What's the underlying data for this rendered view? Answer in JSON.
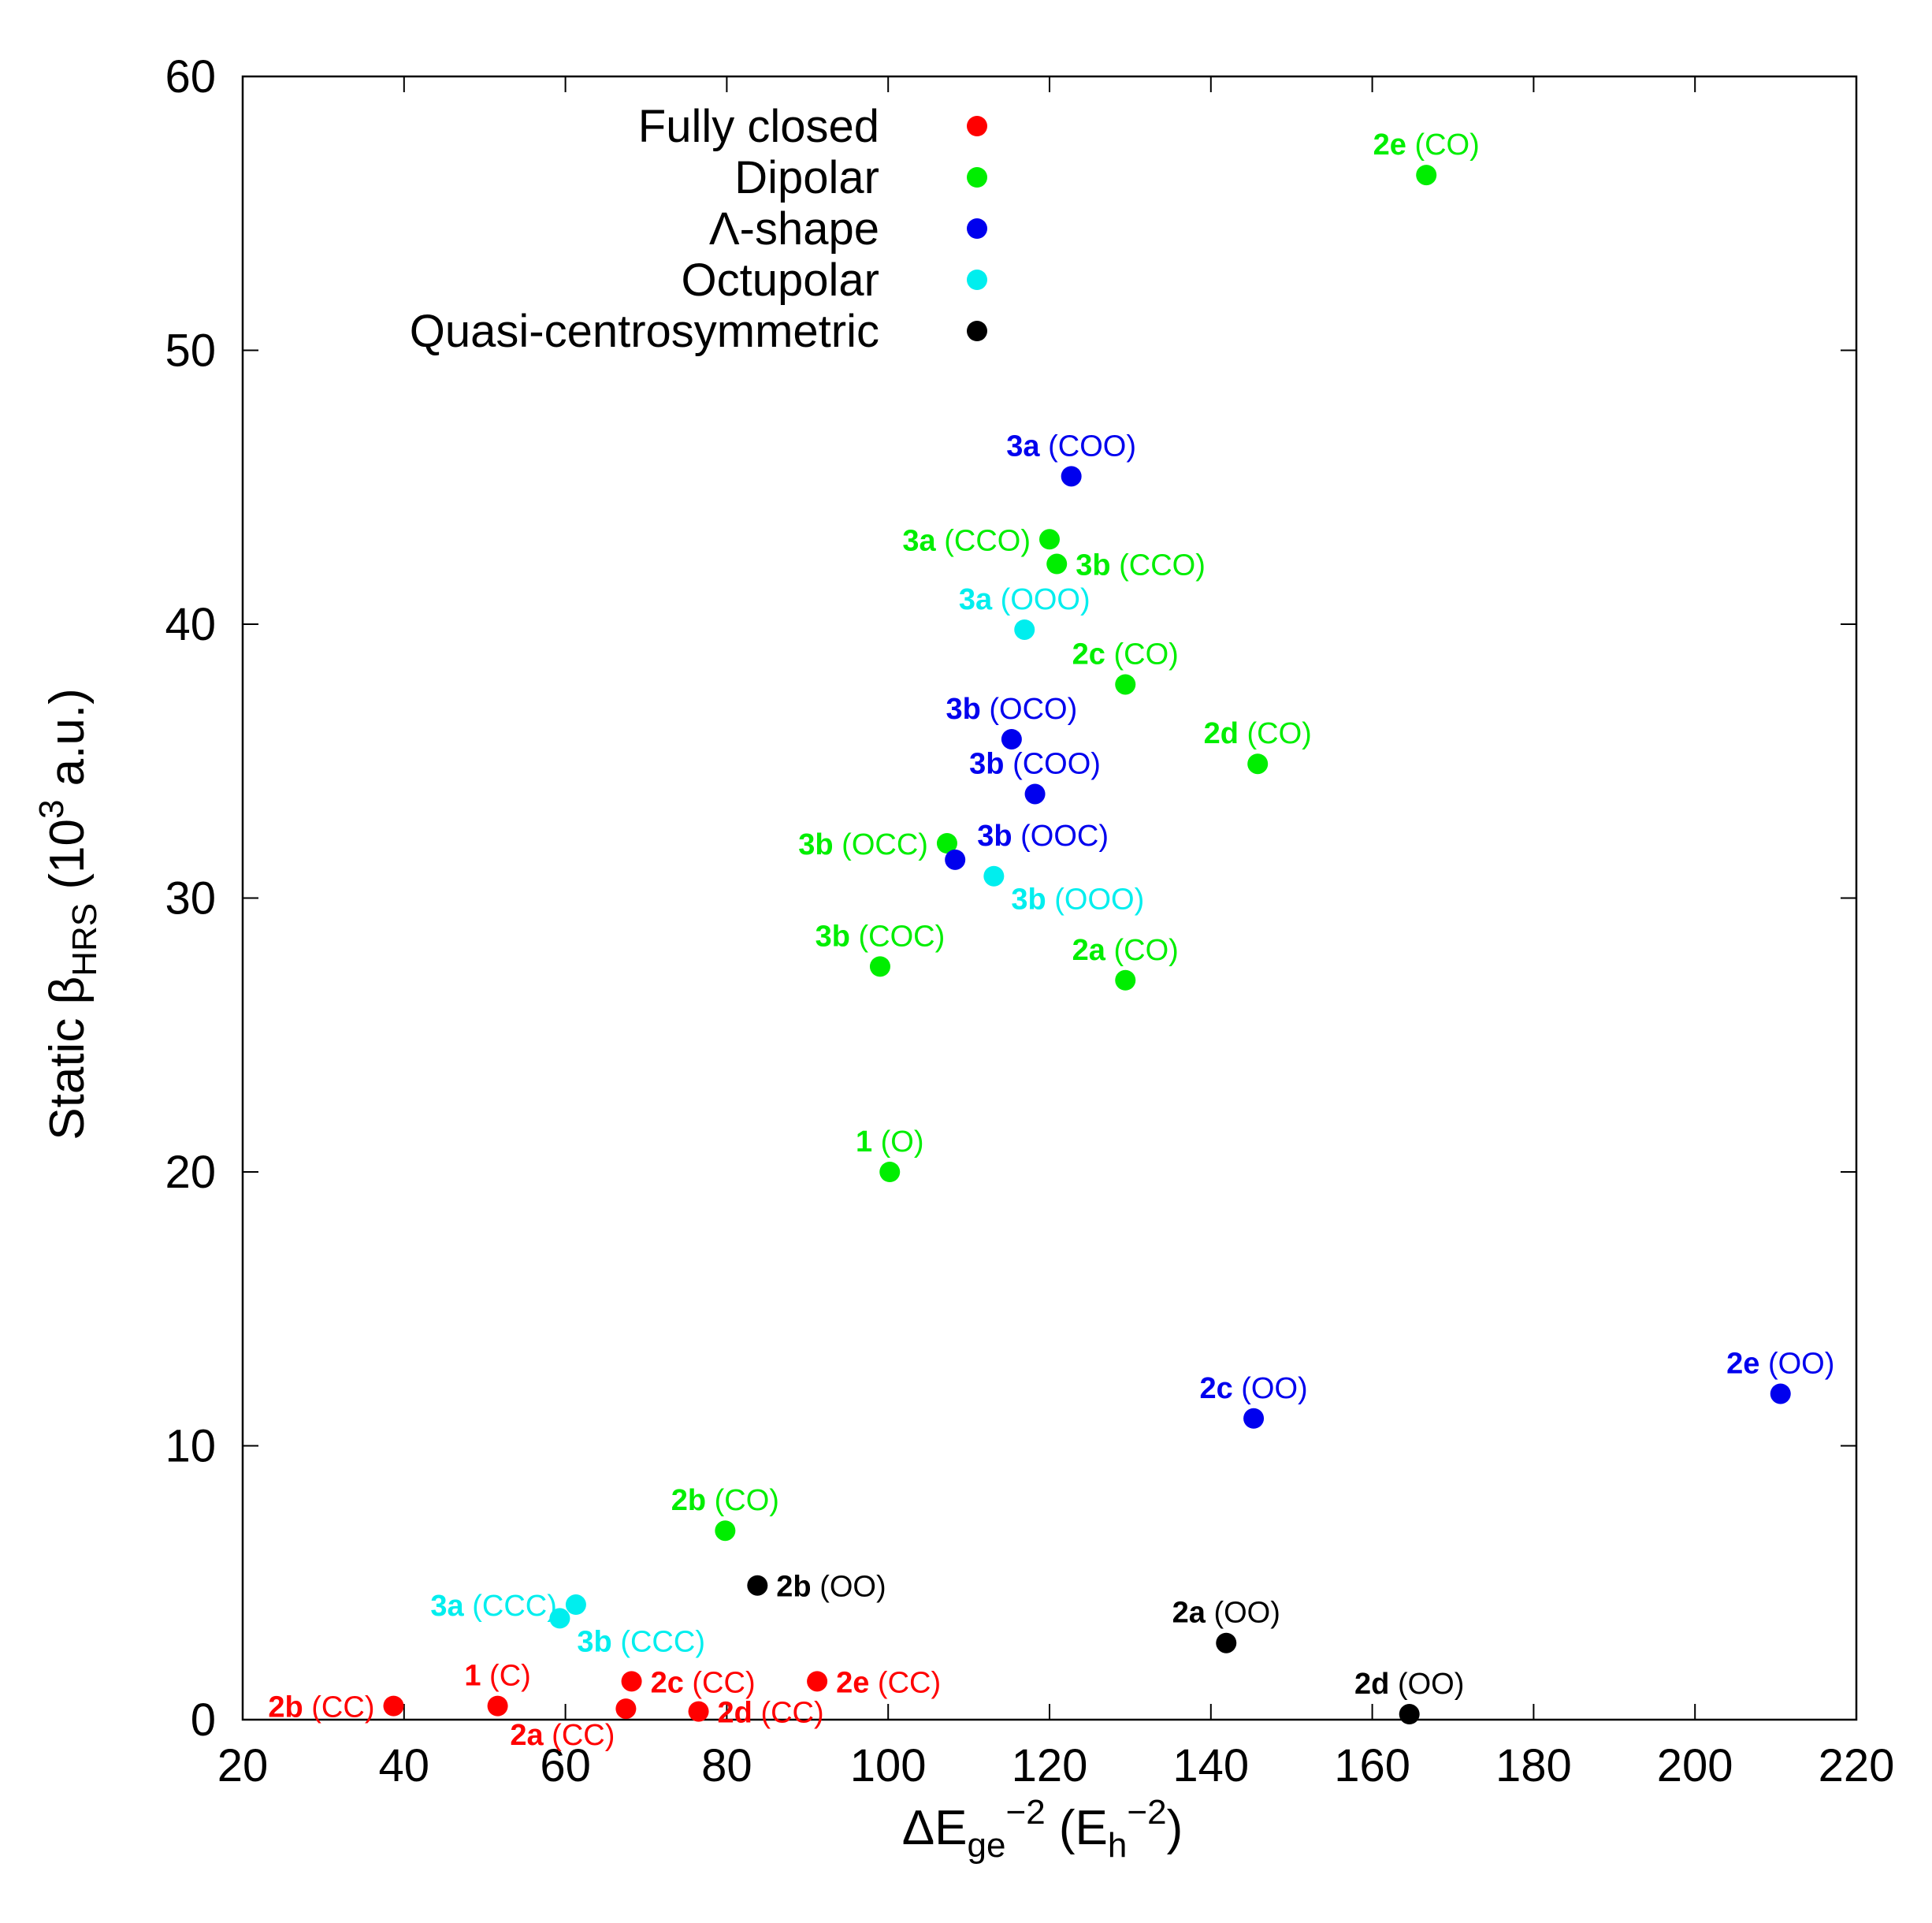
{
  "chart_data": {
    "type": "scatter",
    "xlabel": {
      "base": "ΔE",
      "sub": "ge",
      "sup": "−2",
      "unit_open": " (E",
      "unit_sub": "h",
      "unit_sup": "−2",
      "unit_close": ")"
    },
    "ylabel": {
      "base": "Static β",
      "sub": "HRS",
      "unit_open": " (10",
      "unit_sup": "3",
      "unit_close": " a.u.)"
    },
    "xlim": [
      20,
      220
    ],
    "ylim": [
      0,
      60
    ],
    "xticks": [
      20,
      40,
      60,
      80,
      100,
      120,
      140,
      160,
      180,
      200,
      220
    ],
    "yticks": [
      0,
      10,
      20,
      30,
      40,
      50,
      60
    ],
    "legend_position": "top-left",
    "series": [
      {
        "name": "Fully closed",
        "color": "#ff0000",
        "points": [
          {
            "x": 38.7,
            "y": 0.5,
            "bold": "2b",
            "rest": " (CC)",
            "anchor": "end",
            "pos": "left"
          },
          {
            "x": 51.6,
            "y": 0.5,
            "bold": "1",
            "rest": " (C)",
            "anchor": "middle",
            "pos": "above"
          },
          {
            "x": 67.5,
            "y": 0.4,
            "bold": "2a",
            "rest": " (CC)",
            "anchor": "end",
            "pos": "below-left"
          },
          {
            "x": 68.2,
            "y": 1.4,
            "bold": "2c",
            "rest": " (CC)",
            "anchor": "start",
            "pos": "right"
          },
          {
            "x": 76.5,
            "y": 0.3,
            "bold": "2d",
            "rest": " (CC)",
            "anchor": "start",
            "pos": "right"
          },
          {
            "x": 91.2,
            "y": 1.4,
            "bold": "2e",
            "rest": " (CC)",
            "anchor": "start",
            "pos": "right"
          }
        ]
      },
      {
        "name": "Dipolar",
        "color": "#00ee00",
        "points": [
          {
            "x": 166.7,
            "y": 56.4,
            "bold": "2e",
            "rest": " (CO)",
            "anchor": "middle",
            "pos": "above"
          },
          {
            "x": 120.0,
            "y": 43.1,
            "bold": "3a",
            "rest": " (CCO)",
            "anchor": "end",
            "pos": "left"
          },
          {
            "x": 120.9,
            "y": 42.2,
            "bold": "3b",
            "rest": " (CCO)",
            "anchor": "start",
            "pos": "right"
          },
          {
            "x": 129.4,
            "y": 37.8,
            "bold": "2c",
            "rest": " (CO)",
            "anchor": "middle",
            "pos": "above"
          },
          {
            "x": 145.8,
            "y": 34.9,
            "bold": "2d",
            "rest": " (CO)",
            "anchor": "middle",
            "pos": "above"
          },
          {
            "x": 107.3,
            "y": 32.0,
            "bold": "3b",
            "rest": " (OCC)",
            "anchor": "end",
            "pos": "left"
          },
          {
            "x": 99.0,
            "y": 27.5,
            "bold": "3b",
            "rest": " (COC)",
            "anchor": "middle",
            "pos": "above"
          },
          {
            "x": 129.4,
            "y": 27.0,
            "bold": "2a",
            "rest": " (CO)",
            "anchor": "middle",
            "pos": "above"
          },
          {
            "x": 100.2,
            "y": 20.0,
            "bold": "1",
            "rest": " (O)",
            "anchor": "middle",
            "pos": "above"
          },
          {
            "x": 79.8,
            "y": 6.9,
            "bold": "2b",
            "rest": " (CO)",
            "anchor": "middle",
            "pos": "above"
          }
        ]
      },
      {
        "name": "Λ-shape",
        "color": "#0000ee",
        "points": [
          {
            "x": 122.7,
            "y": 45.4,
            "bold": "3a",
            "rest": " (COO)",
            "anchor": "middle",
            "pos": "above"
          },
          {
            "x": 115.3,
            "y": 35.8,
            "bold": "3b",
            "rest": " (OCO)",
            "anchor": "middle",
            "pos": "above"
          },
          {
            "x": 118.2,
            "y": 33.8,
            "bold": "3b",
            "rest": " (COO)",
            "anchor": "middle",
            "pos": "above"
          },
          {
            "x": 108.3,
            "y": 31.4,
            "bold": "3b",
            "rest": " (OOC)",
            "anchor": "start",
            "pos": "above-right"
          },
          {
            "x": 145.3,
            "y": 11.0,
            "bold": "2c",
            "rest": " (OO)",
            "anchor": "middle",
            "pos": "above"
          },
          {
            "x": 210.6,
            "y": 11.9,
            "bold": "2e",
            "rest": " (OO)",
            "anchor": "middle",
            "pos": "above"
          }
        ]
      },
      {
        "name": "Octupolar",
        "color": "#00eeee",
        "points": [
          {
            "x": 116.9,
            "y": 39.8,
            "bold": "3a",
            "rest": " (OOO)",
            "anchor": "middle",
            "pos": "above"
          },
          {
            "x": 113.1,
            "y": 30.8,
            "bold": "3b",
            "rest": " (OOO)",
            "anchor": "start",
            "pos": "below-right"
          },
          {
            "x": 61.3,
            "y": 4.2,
            "bold": "3a",
            "rest": " (CCC)",
            "anchor": "end",
            "pos": "left"
          },
          {
            "x": 59.3,
            "y": 3.7,
            "bold": "3b",
            "rest": " (CCC)",
            "anchor": "start",
            "pos": "below-right"
          }
        ]
      },
      {
        "name": "Quasi-centrosymmetric",
        "color": "#000000",
        "points": [
          {
            "x": 83.8,
            "y": 4.9,
            "bold": "2b",
            "rest": " (OO)",
            "anchor": "start",
            "pos": "right"
          },
          {
            "x": 141.9,
            "y": 2.8,
            "bold": "2a",
            "rest": " (OO)",
            "anchor": "middle",
            "pos": "above"
          },
          {
            "x": 164.6,
            "y": 0.2,
            "bold": "2d",
            "rest": " (OO)",
            "anchor": "middle",
            "pos": "above"
          }
        ]
      }
    ]
  }
}
